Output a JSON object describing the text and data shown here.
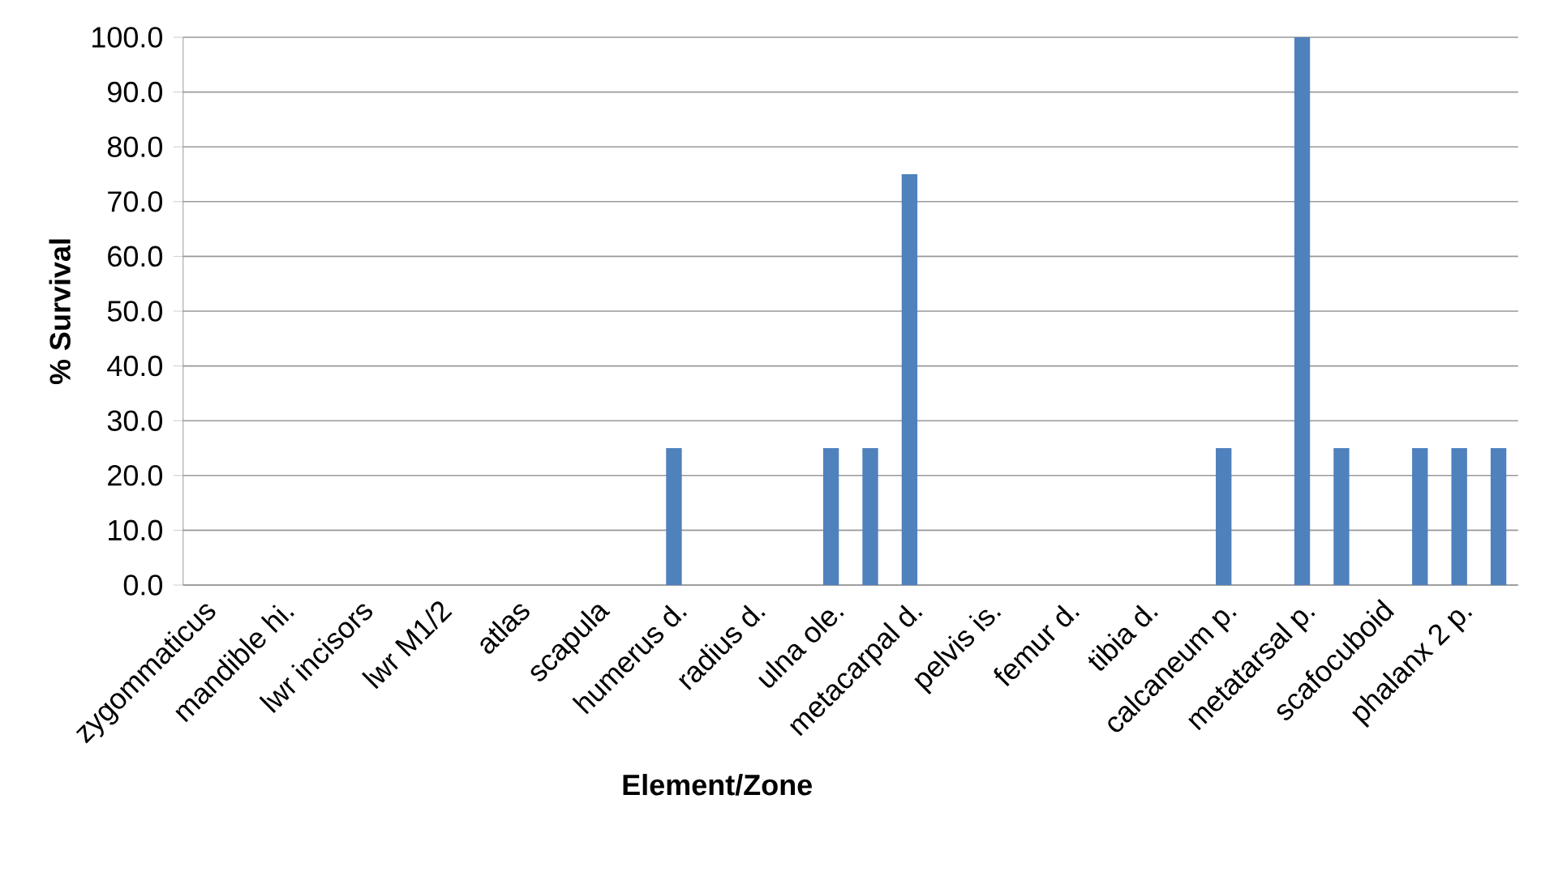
{
  "chart_data": {
    "type": "bar",
    "xlabel": "Element/Zone",
    "ylabel": "% Survival",
    "categories": [
      "zygommaticus",
      null,
      "mandible hi.",
      null,
      "lwr incisors",
      null,
      "lwr M1/2",
      null,
      "atlas",
      null,
      "scapula",
      null,
      "humerus d.",
      null,
      "radius d.",
      null,
      "ulna ole.",
      null,
      "metacarpal d.",
      null,
      "pelvis is.",
      null,
      "femur d.",
      null,
      "tibia d.",
      null,
      "calcaneum p.",
      null,
      "metatarsal p.",
      null,
      "scafocuboid",
      null,
      "phalanx 2 p.",
      null
    ],
    "values": [
      0,
      0,
      0,
      0,
      0,
      0,
      0,
      0,
      0,
      0,
      0,
      0,
      25,
      0,
      0,
      0,
      25,
      25,
      75,
      0,
      0,
      0,
      0,
      0,
      0,
      0,
      25,
      0,
      100,
      25,
      0,
      25,
      25,
      25
    ],
    "color": "#4f81bd",
    "ylim": [
      0,
      100
    ],
    "yticks": [
      {
        "value": 0,
        "label": "0.0"
      },
      {
        "value": 10,
        "label": "10.0"
      },
      {
        "value": 20,
        "label": "20.0"
      },
      {
        "value": 30,
        "label": "30.0"
      },
      {
        "value": 40,
        "label": "40.0"
      },
      {
        "value": 50,
        "label": "50.0"
      },
      {
        "value": 60,
        "label": "60.0"
      },
      {
        "value": 70,
        "label": "70.0"
      },
      {
        "value": 80,
        "label": "80.0"
      },
      {
        "value": 90,
        "label": "90.0"
      },
      {
        "value": 100,
        "label": "100.0"
      }
    ],
    "grid": "y"
  }
}
